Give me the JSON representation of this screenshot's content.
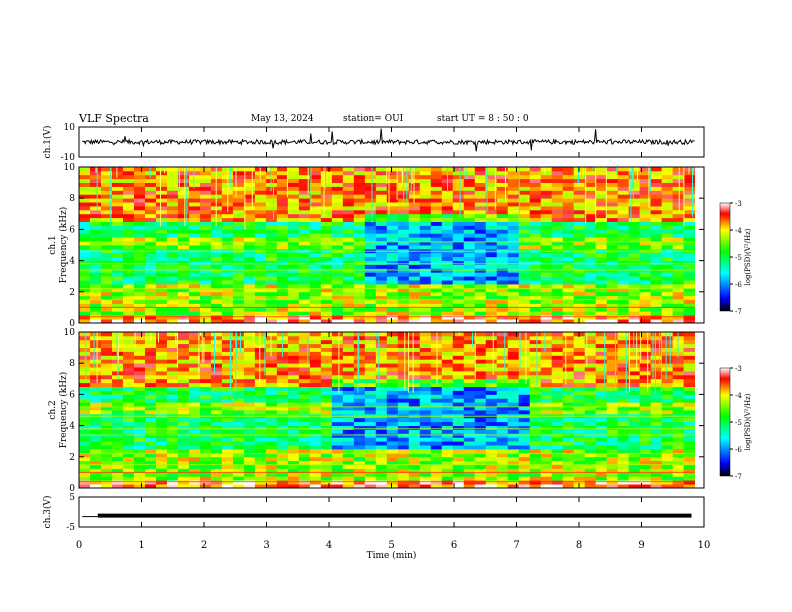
{
  "header": {
    "title": "VLF Spectra",
    "date": "May 13, 2024",
    "station": "station= OUI",
    "start": "start  UT  =   8  : 50 : 0"
  },
  "chart_data": [
    {
      "type": "line",
      "panel": "waveform-ch1",
      "ylabel": "ch.1(V)",
      "yticks": [
        "10",
        "-10"
      ],
      "ylim": [
        -10,
        10
      ],
      "description_values": {
        "baseline": 0,
        "typical_amplitude": 2,
        "max_spike": 10
      }
    },
    {
      "type": "heatmap",
      "panel": "spectrogram-ch1",
      "ylabel": "ch.1 Frequency (kHz)",
      "ylim": [
        0,
        10
      ],
      "yticks": [
        "10",
        "8",
        "6",
        "4",
        "2",
        "0"
      ],
      "colorbar_label": "log(PSD)(V²/Hz)",
      "colorbar_ticks": [
        "-3",
        "-4",
        "-5",
        "-6",
        "-7"
      ],
      "clim": [
        -7,
        -3
      ]
    },
    {
      "type": "heatmap",
      "panel": "spectrogram-ch2",
      "ylabel": "ch.2 Frequency (kHz)",
      "ylim": [
        0,
        10
      ],
      "yticks": [
        "10",
        "8",
        "6",
        "4",
        "2",
        "0"
      ],
      "colorbar_label": "log(PSD)(V²/Hz)",
      "colorbar_ticks": [
        "-3",
        "-4",
        "-5",
        "-6",
        "-7"
      ],
      "clim": [
        -7,
        -3
      ]
    },
    {
      "type": "line",
      "panel": "waveform-ch3",
      "ylabel": "ch.3(V)",
      "yticks": [
        "5",
        "-5"
      ],
      "ylim": [
        -5,
        5
      ],
      "x": [
        0.3,
        9.8
      ],
      "y": [
        -1.2,
        -1.2
      ]
    }
  ],
  "xaxis": {
    "label": "Time  (min)",
    "ticks": [
      "0",
      "1",
      "2",
      "3",
      "4",
      "5",
      "6",
      "7",
      "8",
      "9",
      "10"
    ],
    "xlim": [
      0,
      10
    ]
  }
}
